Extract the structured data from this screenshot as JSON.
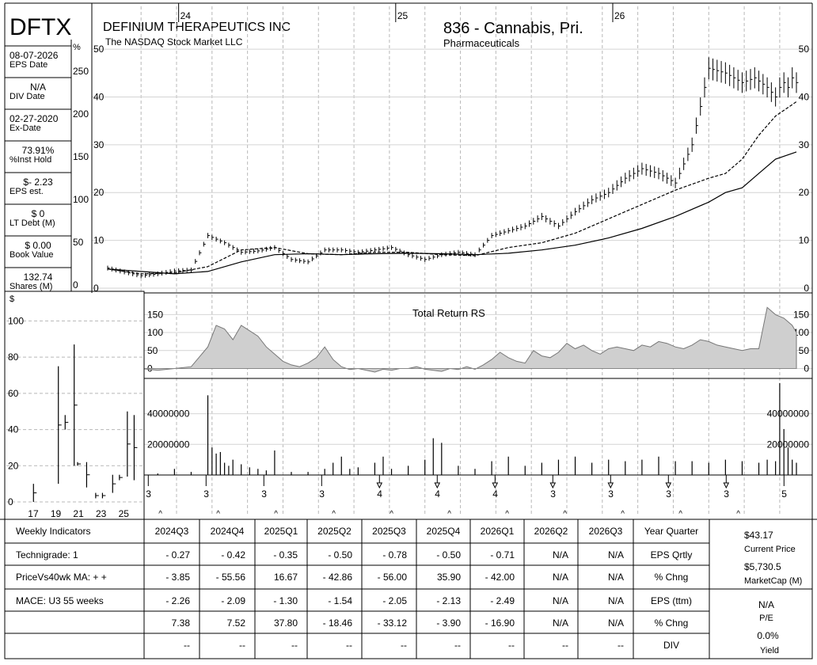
{
  "header": {
    "ticker": "DFTX",
    "company": "DEFINIUM THERAPEUTICS INC",
    "exchange": "The NASDAQ Stock Market LLC",
    "group": "836 - Cannabis, Pri.",
    "sector": "Pharmaceuticals",
    "pct_symbol": "%",
    "dollar_symbol": "$"
  },
  "left_panel": [
    {
      "value": "08-07-2026",
      "label": "EPS Date"
    },
    {
      "value": "N/A",
      "label": "DIV Date"
    },
    {
      "value": "02-27-2020",
      "label": "Ex-Date"
    },
    {
      "value": "73.91%",
      "label": "%Inst Hold"
    },
    {
      "value": "$- 2.23",
      "label": "EPS est."
    },
    {
      "value": "$ 0",
      "label": "LT Debt (M)"
    },
    {
      "value": "$ 0.00",
      "label": "Book Value"
    },
    {
      "value": "132.74",
      "label": "Shares (M)"
    }
  ],
  "pct_ticks": [
    "250",
    "200",
    "150",
    "100",
    "50",
    "0"
  ],
  "chart_data": [
    {
      "type": "line",
      "name": "price",
      "x_labels": [
        {
          "week": 17,
          "label": "24"
        },
        {
          "week": 69,
          "label": "25"
        },
        {
          "week": 121,
          "label": "26"
        }
      ],
      "ylim": [
        0,
        52
      ],
      "yticks": [
        0,
        10,
        20,
        30,
        40,
        50
      ],
      "grid": true,
      "series": [
        {
          "style": "price-bars",
          "x": [
            0,
            4,
            8,
            12,
            16,
            20,
            24,
            28,
            32,
            36,
            40,
            44,
            48,
            52,
            56,
            60,
            64,
            68,
            72,
            76,
            80,
            84,
            88,
            92,
            96,
            100,
            104,
            108,
            112,
            116,
            120,
            124,
            128,
            132,
            136,
            140,
            144,
            148,
            152,
            155,
            158,
            160,
            161,
            162,
            163,
            164,
            165
          ],
          "y": [
            4.2,
            3.4,
            2.6,
            3.0,
            3.6,
            3.8,
            11.0,
            9.5,
            7.5,
            7.8,
            8.5,
            6.0,
            5.5,
            8.0,
            8.0,
            7.5,
            8.0,
            8.5,
            7.0,
            6.0,
            7.0,
            7.5,
            7.0,
            11.0,
            12.0,
            13.0,
            15.0,
            13.0,
            16.0,
            18.5,
            20.0,
            23.0,
            25.0,
            24.0,
            22.0,
            30.0,
            46.0,
            45.0,
            43.0,
            44.0,
            42.0,
            40.0,
            42.0,
            43.0,
            42.0,
            44.0,
            43.0
          ]
        },
        {
          "style": "dashed",
          "x": [
            0,
            8,
            16,
            24,
            32,
            40,
            48,
            56,
            64,
            72,
            80,
            88,
            96,
            104,
            112,
            120,
            128,
            136,
            144,
            148,
            152,
            156,
            160,
            165
          ],
          "y": [
            4.0,
            3.0,
            3.2,
            4.5,
            8.0,
            8.5,
            7.2,
            7.0,
            7.5,
            7.5,
            7.0,
            6.8,
            8.5,
            9.5,
            11.5,
            14.5,
            17.5,
            20.5,
            23.0,
            24.0,
            27.0,
            32.0,
            36.0,
            39.0
          ]
        },
        {
          "style": "solid",
          "x": [
            0,
            8,
            16,
            24,
            32,
            40,
            48,
            56,
            64,
            72,
            80,
            88,
            96,
            104,
            112,
            120,
            128,
            136,
            144,
            148,
            152,
            156,
            160,
            165
          ],
          "y": [
            4.0,
            3.5,
            3.0,
            3.5,
            5.5,
            7.0,
            7.2,
            7.0,
            7.2,
            7.3,
            7.2,
            7.0,
            7.3,
            8.0,
            9.0,
            10.5,
            12.5,
            15.0,
            18.0,
            20.0,
            21.0,
            24.0,
            27.0,
            28.5
          ]
        }
      ]
    },
    {
      "type": "area",
      "title": "Total Return RS",
      "ylim": [
        -10,
        175
      ],
      "yticks": [
        0,
        50,
        100,
        150
      ],
      "x": [
        0,
        4,
        8,
        12,
        16,
        20,
        24,
        26,
        28,
        30,
        32,
        34,
        36,
        38,
        40,
        42,
        44,
        46,
        48,
        50,
        52,
        54,
        56,
        58,
        60,
        62,
        64,
        66,
        68,
        70,
        72,
        74,
        76,
        78,
        80,
        82,
        84,
        86,
        88,
        90,
        92,
        94,
        96,
        98,
        100,
        102,
        104,
        106,
        108,
        110,
        112,
        114,
        116,
        118,
        120,
        122,
        124,
        126,
        128,
        130,
        132,
        134,
        136,
        138,
        140,
        142,
        144,
        146,
        148,
        150,
        152,
        154,
        156,
        158,
        160,
        162,
        164,
        165
      ],
      "y": [
        -5,
        -10,
        0,
        -5,
        0,
        5,
        60,
        120,
        110,
        80,
        120,
        105,
        90,
        60,
        40,
        20,
        10,
        5,
        15,
        30,
        60,
        25,
        5,
        -3,
        0,
        -5,
        -10,
        -2,
        -5,
        0,
        0,
        5,
        -2,
        -5,
        -8,
        0,
        -3,
        5,
        -2,
        10,
        25,
        45,
        30,
        20,
        15,
        50,
        35,
        30,
        45,
        70,
        55,
        65,
        50,
        40,
        55,
        60,
        55,
        50,
        65,
        60,
        75,
        70,
        60,
        55,
        65,
        80,
        75,
        65,
        60,
        55,
        50,
        55,
        55,
        170,
        150,
        140,
        120,
        100
      ]
    },
    {
      "type": "bar",
      "name": "volume",
      "ylim": [
        0,
        62000000
      ],
      "yticks": [
        20000000,
        40000000
      ],
      "x": [
        0,
        4,
        8,
        12,
        16,
        20,
        24,
        25,
        26,
        27,
        28,
        29,
        30,
        32,
        34,
        36,
        38,
        40,
        44,
        48,
        52,
        54,
        56,
        58,
        60,
        64,
        66,
        68,
        72,
        76,
        78,
        80,
        84,
        88,
        92,
        96,
        100,
        104,
        108,
        112,
        116,
        120,
        124,
        128,
        132,
        136,
        140,
        144,
        148,
        152,
        156,
        158,
        160,
        161,
        162,
        163,
        164,
        165
      ],
      "values": [
        500000,
        1000000,
        2000000,
        1000000,
        4000000,
        2000000,
        52000000,
        18000000,
        14000000,
        15000000,
        8000000,
        6000000,
        10000000,
        7000000,
        5000000,
        4000000,
        3000000,
        16000000,
        2000000,
        2000000,
        4000000,
        8000000,
        12000000,
        4000000,
        5000000,
        8000000,
        12000000,
        4000000,
        6000000,
        10000000,
        24000000,
        21000000,
        6000000,
        4000000,
        9000000,
        12000000,
        6000000,
        8000000,
        10000000,
        12000000,
        8000000,
        10000000,
        9000000,
        10000000,
        12000000,
        9000000,
        9000000,
        8000000,
        10000000,
        9000000,
        8000000,
        10000000,
        9000000,
        60000000,
        30000000,
        18000000,
        10000000,
        8000000
      ]
    },
    {
      "type": "line",
      "name": "ratings history",
      "xticks": [
        "17",
        "19",
        "21",
        "23",
        "25"
      ],
      "ylim": [
        0,
        105
      ],
      "yticks": [
        0,
        20,
        40,
        60,
        80,
        100
      ],
      "segments": [
        [
          17.0,
          0,
          10
        ],
        [
          19.2,
          10,
          75
        ],
        [
          19.8,
          40,
          48
        ],
        [
          20.6,
          20,
          87
        ],
        [
          20.9,
          20,
          22
        ],
        [
          21.7,
          8,
          22
        ],
        [
          22.5,
          2,
          5
        ],
        [
          23.1,
          2,
          5
        ],
        [
          24.0,
          5,
          15
        ],
        [
          24.6,
          12,
          15
        ],
        [
          25.3,
          14,
          50
        ],
        [
          25.9,
          12,
          48
        ]
      ]
    }
  ],
  "events": {
    "numbers": [
      {
        "w": 2,
        "t": "3"
      },
      {
        "w": 22,
        "t": "3"
      },
      {
        "w": 42,
        "t": "3"
      },
      {
        "w": 62,
        "t": "3"
      },
      {
        "w": 82,
        "t": "4"
      },
      {
        "w": 102,
        "t": "4"
      },
      {
        "w": 122,
        "t": "4"
      },
      {
        "w": 142,
        "t": "3"
      },
      {
        "w": 162,
        "t": "3"
      },
      {
        "w": 182,
        "t": "3"
      },
      {
        "w": 202,
        "t": "3"
      },
      {
        "w": 222,
        "t": "5"
      }
    ]
  },
  "table": {
    "corner": "Weekly Indicators",
    "quarters": [
      "2024Q3",
      "2024Q4",
      "2025Q1",
      "2025Q2",
      "2025Q3",
      "2025Q4",
      "2026Q1",
      "2026Q2",
      "2026Q3"
    ],
    "label_col": "Year Quarter",
    "rows": [
      {
        "left": "Technigrade: 1",
        "values": [
          "- 0.27",
          "- 0.42",
          "- 0.35",
          "- 0.50",
          "- 0.78",
          "- 0.50",
          "- 0.71",
          "N/A",
          "N/A"
        ],
        "label": "EPS Qrtly"
      },
      {
        "left": "PriceVs40wk MA:  + +",
        "values": [
          "- 3.85",
          "- 55.56",
          "16.67",
          "- 42.86",
          "- 56.00",
          "35.90",
          "- 42.00",
          "N/A",
          "N/A"
        ],
        "label": "% Chng"
      },
      {
        "left": "MACE: U3  55 weeks",
        "values": [
          "- 2.26",
          "- 2.09",
          "- 1.30",
          "- 1.54",
          "- 2.05",
          "- 2.13",
          "- 2.49",
          "N/A",
          "N/A"
        ],
        "label": "EPS (ttm)"
      },
      {
        "left": "",
        "values": [
          "7.38",
          "7.52",
          "37.80",
          "- 18.46",
          "- 33.12",
          "- 3.90",
          "- 16.90",
          "N/A",
          "N/A"
        ],
        "label": "% Chng"
      },
      {
        "left": "",
        "values": [
          "--",
          "--",
          "--",
          "--",
          "--",
          "--",
          "--",
          "--",
          "--"
        ],
        "label": "DIV"
      }
    ],
    "right": {
      "price": "$43.17",
      "price_label": "Current Price",
      "mcap": "$5,730.5",
      "mcap_label": "MarketCap (M)",
      "pe": "N/A",
      "pe_label": "P/E",
      "yield": "0.0%",
      "yield_label": "Yield"
    }
  }
}
